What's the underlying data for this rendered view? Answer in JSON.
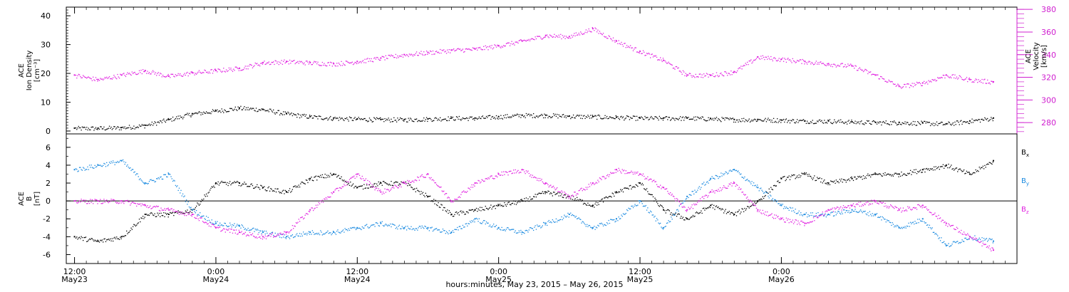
{
  "chart_data": [
    {
      "type": "scatter",
      "panel": "top",
      "ylabel_left": [
        "ACE",
        "Ion Density",
        "[cm⁻³]"
      ],
      "ylabel_right": [
        "ACE",
        "Velocity",
        "[km/s]"
      ],
      "ylim_left": [
        -1,
        43
      ],
      "yticks_left": [
        0,
        10,
        20,
        30,
        40
      ],
      "ylim_right": [
        270,
        382
      ],
      "yticks_right": [
        280,
        300,
        320,
        340,
        360,
        380
      ],
      "series": [
        {
          "axis": "left",
          "color": "#000000",
          "x": [
            0,
            2,
            4,
            6,
            8,
            10,
            12,
            14,
            16,
            18,
            20,
            22,
            24,
            26,
            28,
            30,
            32,
            34,
            36,
            38,
            40,
            42,
            44,
            46,
            48,
            50,
            52,
            54,
            56,
            58,
            60,
            62,
            64,
            66,
            68,
            70,
            72,
            74,
            76,
            78
          ],
          "y": [
            1,
            1,
            1.2,
            2,
            4,
            6,
            7,
            8,
            7.5,
            6,
            5,
            4.5,
            4.2,
            4,
            4,
            4.2,
            4.5,
            4.5,
            5,
            5.5,
            5.5,
            5.2,
            5,
            4.8,
            4.5,
            4.5,
            4.5,
            4.3,
            4,
            4,
            3.8,
            3.5,
            3.5,
            3.2,
            3,
            3,
            2.8,
            2.5,
            3.5,
            4.5
          ]
        },
        {
          "axis": "right",
          "color": "#e020e0",
          "x": [
            0,
            2,
            4,
            6,
            8,
            10,
            12,
            14,
            16,
            18,
            20,
            22,
            24,
            26,
            28,
            30,
            32,
            34,
            36,
            38,
            40,
            42,
            44,
            46,
            48,
            50,
            52,
            54,
            56,
            58,
            60,
            62,
            64,
            66,
            68,
            70,
            72,
            74,
            76,
            78
          ],
          "y": [
            322,
            318,
            322,
            326,
            321,
            324,
            326,
            328,
            333,
            334,
            333,
            332,
            334,
            337,
            340,
            342,
            344,
            345,
            348,
            352,
            357,
            356,
            363,
            352,
            343,
            335,
            322,
            322,
            325,
            338,
            336,
            334,
            332,
            330,
            322,
            312,
            315,
            322,
            318,
            316
          ]
        }
      ]
    },
    {
      "type": "scatter",
      "panel": "bottom",
      "ylabel": [
        "ACE",
        "B",
        "[nT]"
      ],
      "ylim": [
        -7,
        7.5
      ],
      "yticks": [
        -6,
        -4,
        -2,
        0,
        2,
        4,
        6
      ],
      "zero_line": true,
      "series": [
        {
          "name": "Bx",
          "color": "#000000",
          "x": [
            0,
            2,
            4,
            6,
            8,
            10,
            12,
            14,
            16,
            18,
            20,
            22,
            24,
            26,
            28,
            30,
            32,
            34,
            36,
            38,
            40,
            42,
            44,
            46,
            48,
            50,
            52,
            54,
            56,
            58,
            60,
            62,
            64,
            66,
            68,
            70,
            72,
            74,
            76,
            78
          ],
          "y": [
            -4,
            -4.5,
            -4,
            -1.5,
            -1.5,
            -1,
            2,
            2,
            1.5,
            1,
            2.5,
            3,
            1.5,
            2,
            2,
            0.5,
            -1.5,
            -1,
            -0.5,
            0,
            1,
            0.5,
            -0.5,
            1,
            2,
            -1,
            -2,
            -0.5,
            -1.5,
            0,
            2.5,
            3,
            2,
            2.5,
            3,
            3,
            3.5,
            4,
            3,
            4.5
          ]
        },
        {
          "name": "By",
          "color": "#1a8ae0",
          "x": [
            0,
            2,
            4,
            6,
            8,
            10,
            12,
            14,
            16,
            18,
            20,
            22,
            24,
            26,
            28,
            30,
            32,
            34,
            36,
            38,
            40,
            42,
            44,
            46,
            48,
            50,
            52,
            54,
            56,
            58,
            60,
            62,
            64,
            66,
            68,
            70,
            72,
            74,
            76,
            78
          ],
          "y": [
            3.5,
            4,
            4.5,
            2,
            3,
            -1,
            -2.5,
            -2.8,
            -3.5,
            -4,
            -3.5,
            -3.5,
            -3,
            -2.5,
            -3,
            -3,
            -3.5,
            -2,
            -3,
            -3.5,
            -2.5,
            -1.5,
            -3,
            -2,
            0,
            -3,
            0.5,
            2.5,
            3.5,
            1.5,
            -0.5,
            -1.5,
            -1.5,
            -1,
            -1.5,
            -3,
            -2,
            -5,
            -4,
            -4.5
          ]
        },
        {
          "name": "Bz",
          "color": "#e020e0",
          "x": [
            0,
            2,
            4,
            6,
            8,
            10,
            12,
            14,
            16,
            18,
            20,
            22,
            24,
            26,
            28,
            30,
            32,
            34,
            36,
            38,
            40,
            42,
            44,
            46,
            48,
            50,
            52,
            54,
            56,
            58,
            60,
            62,
            64,
            66,
            68,
            70,
            72,
            74,
            76,
            78
          ],
          "y": [
            0,
            0,
            0,
            -0.5,
            -1,
            -1.5,
            -3,
            -3.5,
            -4,
            -3.5,
            -1,
            1,
            3,
            1,
            2,
            3,
            0,
            2,
            3,
            3.5,
            2,
            0.5,
            2,
            3.5,
            3,
            1.5,
            -1,
            1,
            2,
            -1,
            -2,
            -2.5,
            -1,
            -0.5,
            0,
            -1,
            -0.5,
            -2.5,
            -4,
            -5.5
          ]
        }
      ],
      "legend": [
        "Bx",
        "By",
        "Bz"
      ],
      "legend_placement": "right"
    }
  ],
  "xaxis": {
    "xlim": [
      -0.7,
      80
    ],
    "major_ticks": [
      {
        "x": 0,
        "time": "12:00",
        "date": "May23"
      },
      {
        "x": 12,
        "time": "0:00",
        "date": "May24"
      },
      {
        "x": 24,
        "time": "12:00",
        "date": "May24"
      },
      {
        "x": 36,
        "time": "0:00",
        "date": "May25"
      },
      {
        "x": 48,
        "time": "12:00",
        "date": "May25"
      },
      {
        "x": 60,
        "time": "0:00",
        "date": "May26"
      }
    ],
    "minor_step_hours": 1,
    "label": "hours:minutes, May 23, 2015 – May 26, 2015"
  }
}
